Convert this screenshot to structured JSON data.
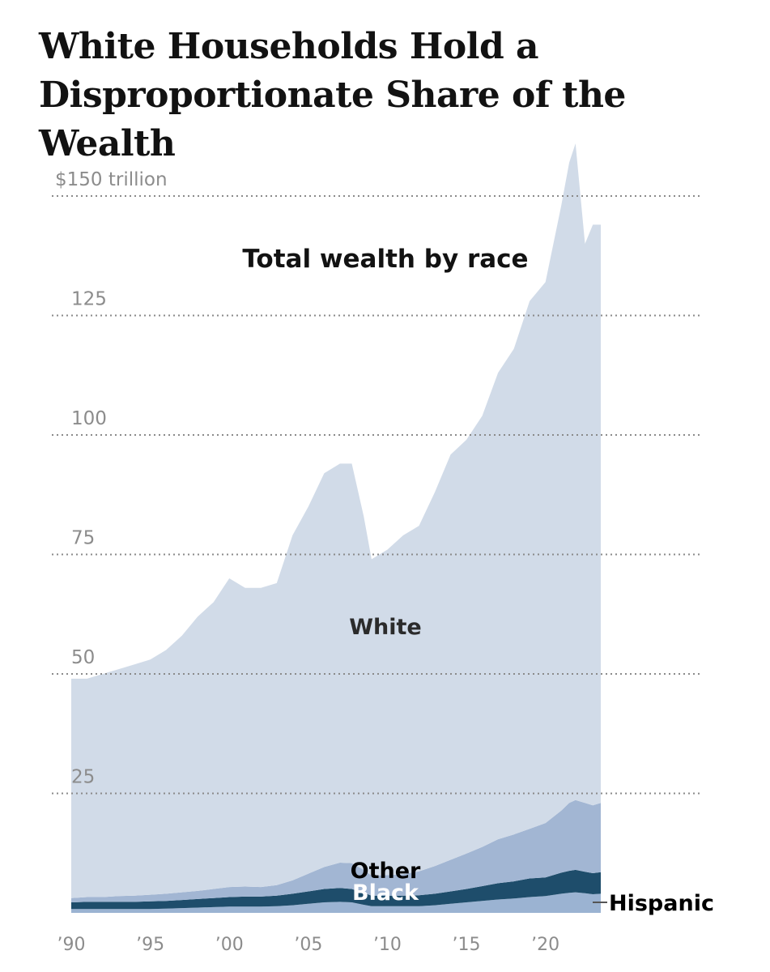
{
  "headline": "White Households Hold a Disproportionate Share of the Wealth",
  "chart_data": {
    "type": "area",
    "stacked": true,
    "title": "Total wealth by race",
    "y_tick_labels": [
      "$150 trillion",
      "125",
      "100",
      "75",
      "50",
      "25"
    ],
    "y_ticks": [
      150,
      125,
      100,
      75,
      50,
      25
    ],
    "ylim": [
      0,
      150
    ],
    "xlim": [
      1990,
      2023.5
    ],
    "x_tick_labels": [
      "’90",
      "’95",
      "’00",
      "’05",
      "’10",
      "’15",
      "’20"
    ],
    "x_ticks": [
      1990,
      1995,
      2000,
      2005,
      2010,
      2015,
      2020
    ],
    "grid": "horizontal dotted",
    "x": [
      1990,
      1991,
      1992,
      1993,
      1994,
      1995,
      1996,
      1997,
      1998,
      1999,
      2000,
      2001,
      2002,
      2003,
      2004,
      2005,
      2006,
      2007,
      2007.75,
      2008.5,
      2009,
      2010,
      2011,
      2012,
      2013,
      2014,
      2015,
      2016,
      2017,
      2018,
      2019,
      2020,
      2021,
      2021.5,
      2021.9,
      2022.5,
      2023,
      2023.5
    ],
    "series": [
      {
        "name": "Hispanic",
        "color": "#9bb3d2",
        "values": [
          0.8,
          0.8,
          0.8,
          0.8,
          0.8,
          0.8,
          0.9,
          1.0,
          1.1,
          1.2,
          1.3,
          1.3,
          1.3,
          1.4,
          1.6,
          1.9,
          2.2,
          2.3,
          2.2,
          1.7,
          1.4,
          1.4,
          1.4,
          1.4,
          1.6,
          1.9,
          2.2,
          2.5,
          2.8,
          3.0,
          3.3,
          3.5,
          4.0,
          4.2,
          4.3,
          4.1,
          3.9,
          4.0
        ]
      },
      {
        "name": "Black",
        "color": "#1e4d6b",
        "values": [
          1.4,
          1.5,
          1.5,
          1.5,
          1.5,
          1.6,
          1.6,
          1.7,
          1.8,
          1.9,
          2.0,
          2.1,
          2.1,
          2.2,
          2.4,
          2.6,
          2.8,
          2.9,
          2.8,
          2.5,
          2.2,
          2.2,
          2.2,
          2.3,
          2.4,
          2.6,
          2.8,
          3.1,
          3.4,
          3.6,
          3.9,
          3.9,
          4.4,
          4.6,
          4.7,
          4.5,
          4.4,
          4.5
        ]
      },
      {
        "name": "Other",
        "color": "#a2b6d3",
        "values": [
          0.9,
          1.0,
          1.0,
          1.2,
          1.3,
          1.4,
          1.5,
          1.6,
          1.7,
          1.9,
          2.1,
          2.1,
          2.0,
          2.2,
          2.8,
          3.7,
          4.6,
          5.3,
          5.4,
          4.8,
          4.2,
          4.3,
          4.5,
          5.0,
          5.8,
          6.6,
          7.4,
          8.2,
          9.2,
          9.8,
          10.4,
          11.4,
          13.0,
          14.2,
          14.6,
          14.4,
          14.2,
          14.5
        ]
      },
      {
        "name": "White",
        "color": "#d1dbe8",
        "values": [
          45.9,
          45.7,
          46.7,
          47.5,
          48.4,
          49.2,
          51.0,
          53.7,
          57.4,
          60.0,
          64.6,
          62.5,
          62.6,
          63.2,
          72.2,
          76.8,
          82.4,
          83.5,
          83.6,
          74.0,
          66.2,
          68.1,
          70.9,
          72.3,
          78.2,
          84.8,
          86.6,
          90.2,
          97.6,
          101.6,
          110.4,
          113.2,
          126.6,
          134.0,
          137.4,
          117.0,
          121.5,
          121.0
        ]
      }
    ]
  },
  "labels": {
    "white": "White",
    "other": "Other",
    "black": "Black",
    "hispanic": "Hispanic"
  }
}
